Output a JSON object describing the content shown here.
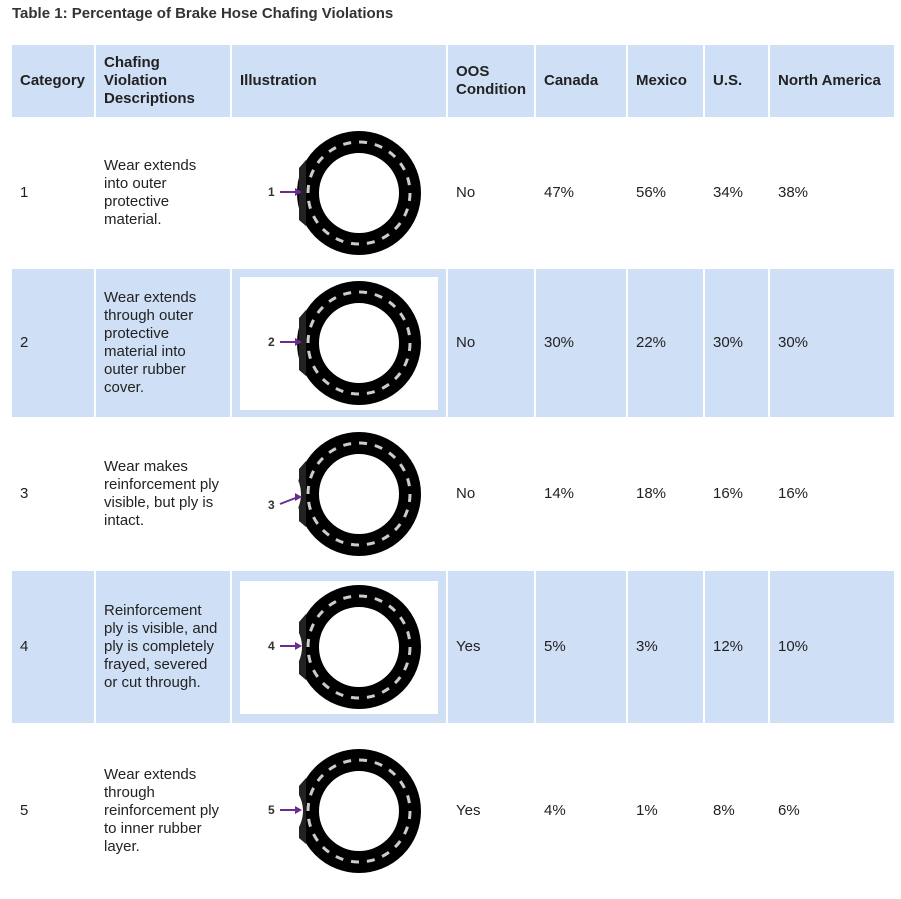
{
  "title": "Table 1: Percentage of Brake Hose Chafing Violations",
  "table": {
    "headers": [
      "Category",
      "Chafing Violation Descriptions",
      "Illustration",
      "OOS Condition",
      "Canada",
      "Mexico",
      "U.S.",
      "North America"
    ],
    "rows": [
      {
        "category": "1",
        "description": "Wear extends into outer protective material.",
        "illustration_label": "1",
        "oos": "No",
        "canada": "47%",
        "mexico": "56%",
        "us": "34%",
        "north_america": "38%"
      },
      {
        "category": "2",
        "description": "Wear extends through outer protective material into outer rubber cover.",
        "illustration_label": "2",
        "oos": "No",
        "canada": "30%",
        "mexico": "22%",
        "us": "30%",
        "north_america": "30%"
      },
      {
        "category": "3",
        "description": "Wear makes reinforcement ply visible, but ply is intact.",
        "illustration_label": "3",
        "oos": "No",
        "canada": "14%",
        "mexico": "18%",
        "us": "16%",
        "north_america": "16%"
      },
      {
        "category": "4",
        "description": "Reinforcement ply is visible, and ply is completely frayed, severed or cut through.",
        "illustration_label": "4",
        "oos": "Yes",
        "canada": "5%",
        "mexico": "3%",
        "us": "12%",
        "north_america": "10%"
      },
      {
        "category": "5",
        "description": "Wear extends through reinforcement ply to inner rubber layer.",
        "illustration_label": "5",
        "oos": "Yes",
        "canada": "4%",
        "mexico": "1%",
        "us": "8%",
        "north_america": "6%"
      }
    ]
  }
}
